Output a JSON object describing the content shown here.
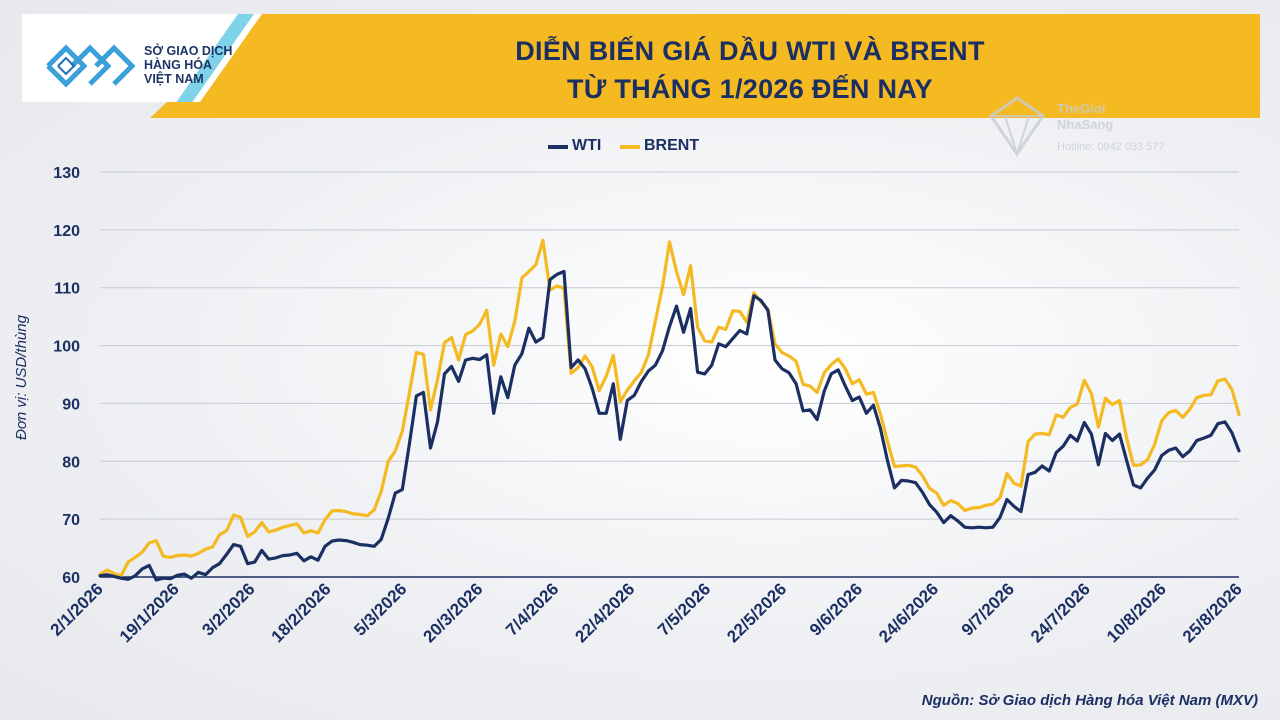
{
  "header": {
    "title_line1": "DIỄN BIẾN GIÁ DẦU WTI VÀ BRENT",
    "title_line2": "TỪ THÁNG 1/2026 ĐẾN NAY"
  },
  "logo": {
    "line1": "SỞ GIAO DỊCH",
    "line2": "HÀNG HÓA",
    "line3": "VIỆT NAM"
  },
  "watermark": {
    "line1": "TheGioi",
    "line2": "NhaSang",
    "line3": "Hotline: 0942 033 577"
  },
  "source": "Nguồn: Sở Giao dịch Hàng hóa Việt Nam (MXV)",
  "colors": {
    "wti": "#1b2f63",
    "brent": "#f5b921",
    "header_band": "#f5b921",
    "title_text": "#1b2f63"
  },
  "chart_data": {
    "type": "line",
    "title": "DIỄN BIẾN GIÁ DẦU WTI VÀ BRENT TỪ THÁNG 1/2026 ĐẾN NAY",
    "xlabel": "",
    "ylabel": "Đơn vị: USD/thùng",
    "ylim": [
      60,
      130
    ],
    "yticks": [
      60,
      70,
      80,
      90,
      100,
      110,
      120,
      130
    ],
    "grid": "horizontal",
    "legend_position": "top-center",
    "xtick_labels": [
      "2/1/2026",
      "19/1/2026",
      "3/2/2026",
      "18/2/2026",
      "5/3/2026",
      "20/3/2026",
      "7/4/2026",
      "22/4/2026",
      "7/5/2026",
      "22/5/2026",
      "9/6/2026",
      "24/6/2026",
      "9/7/2026",
      "24/7/2026",
      "10/8/2026",
      "25/8/2026"
    ],
    "series": [
      {
        "name": "WTI",
        "color": "#1b2f63",
        "values": [
          60.2,
          60.4,
          60.1,
          59.8,
          59.6,
          60.2,
          61.4,
          62.0,
          59.5,
          59.8,
          59.7,
          60.3,
          60.5,
          59.8,
          60.8,
          60.4,
          61.6,
          62.3,
          63.9,
          65.6,
          65.3,
          62.3,
          62.6,
          64.6,
          63.1,
          63.3,
          63.7,
          63.8,
          64.1,
          62.8,
          63.5,
          62.9,
          65.3,
          66.2,
          66.4,
          66.3,
          66.0,
          65.6,
          65.5,
          65.3,
          66.5,
          70.2,
          74.5,
          75.1,
          83.0,
          91.3,
          91.9,
          82.3,
          86.8,
          95.1,
          96.4,
          93.8,
          97.5,
          97.8,
          97.6,
          98.4,
          88.3,
          94.6,
          91.0,
          96.6,
          98.6,
          103.0,
          100.6,
          101.4,
          111.4,
          112.3,
          112.8,
          96.2,
          97.5,
          96.0,
          92.6,
          88.3,
          88.3,
          93.4,
          83.8,
          90.5,
          91.4,
          93.8,
          95.6,
          96.6,
          99.1,
          103.3,
          106.8,
          102.3,
          106.4,
          95.4,
          95.1,
          96.6,
          100.3,
          99.8,
          101.2,
          102.6,
          102.0,
          108.6,
          107.8,
          106.1,
          97.5,
          96.0,
          95.3,
          93.4,
          88.7,
          88.9,
          87.2,
          92.1,
          95.1,
          95.8,
          93.0,
          90.5,
          91.1,
          88.3,
          89.7,
          85.7,
          80.1,
          75.4,
          76.7,
          76.6,
          76.3,
          74.6,
          72.5,
          71.2,
          69.4,
          70.6,
          69.7,
          68.6,
          68.5,
          68.6,
          68.5,
          68.6,
          70.3,
          73.4,
          72.2,
          71.3,
          77.7,
          78.1,
          79.2,
          78.3,
          81.5,
          82.6,
          84.5,
          83.5,
          86.7,
          84.7,
          79.4,
          84.8,
          83.6,
          84.7,
          80.2,
          75.9,
          75.4,
          77.1,
          78.5,
          81.0,
          81.9,
          82.3,
          80.8,
          81.8,
          83.6,
          84.0,
          84.5,
          86.5,
          86.8,
          84.9,
          81.8
        ]
      },
      {
        "name": "BRENT",
        "color": "#f5b921",
        "values": [
          60.5,
          61.2,
          60.6,
          60.2,
          62.6,
          63.4,
          64.3,
          65.9,
          66.3,
          63.6,
          63.4,
          63.7,
          63.8,
          63.6,
          64.1,
          64.8,
          65.2,
          67.3,
          68.0,
          70.7,
          70.3,
          67.0,
          67.8,
          69.4,
          67.8,
          68.1,
          68.6,
          68.9,
          69.2,
          67.6,
          68.0,
          67.6,
          69.9,
          71.4,
          71.5,
          71.3,
          70.9,
          70.8,
          70.6,
          71.6,
          74.8,
          80.0,
          81.8,
          85.2,
          91.8,
          98.8,
          98.5,
          88.9,
          94.1,
          100.5,
          101.4,
          97.5,
          101.9,
          102.5,
          103.7,
          106.1,
          96.6,
          102.0,
          99.8,
          104.2,
          111.7,
          112.8,
          114.0,
          118.2,
          109.6,
          110.3,
          109.9,
          95.2,
          96.2,
          98.2,
          96.3,
          92.2,
          94.7,
          98.3,
          90.3,
          92.3,
          93.9,
          95.4,
          98.4,
          104.3,
          110.2,
          117.9,
          112.8,
          108.8,
          113.8,
          103.2,
          100.8,
          100.6,
          103.2,
          102.8,
          106.0,
          105.9,
          104.0,
          109.1,
          107.6,
          106.3,
          100.3,
          98.8,
          98.2,
          97.3,
          93.3,
          93.0,
          91.9,
          95.3,
          96.7,
          97.7,
          96.0,
          93.4,
          94.1,
          91.6,
          91.9,
          88.2,
          83.4,
          79.1,
          79.2,
          79.3,
          79.0,
          77.5,
          75.3,
          74.5,
          72.4,
          73.2,
          72.7,
          71.5,
          71.9,
          72.0,
          72.4,
          72.6,
          73.7,
          77.9,
          76.2,
          75.7,
          83.4,
          84.7,
          84.8,
          84.6,
          88.0,
          87.6,
          89.3,
          89.9,
          94.0,
          91.7,
          85.9,
          90.9,
          89.8,
          90.5,
          84.1,
          79.3,
          79.4,
          80.3,
          82.9,
          87.0,
          88.4,
          88.8,
          87.6,
          89.0,
          91.0,
          91.4,
          91.5,
          93.9,
          94.2,
          92.4,
          88.1
        ]
      }
    ]
  }
}
